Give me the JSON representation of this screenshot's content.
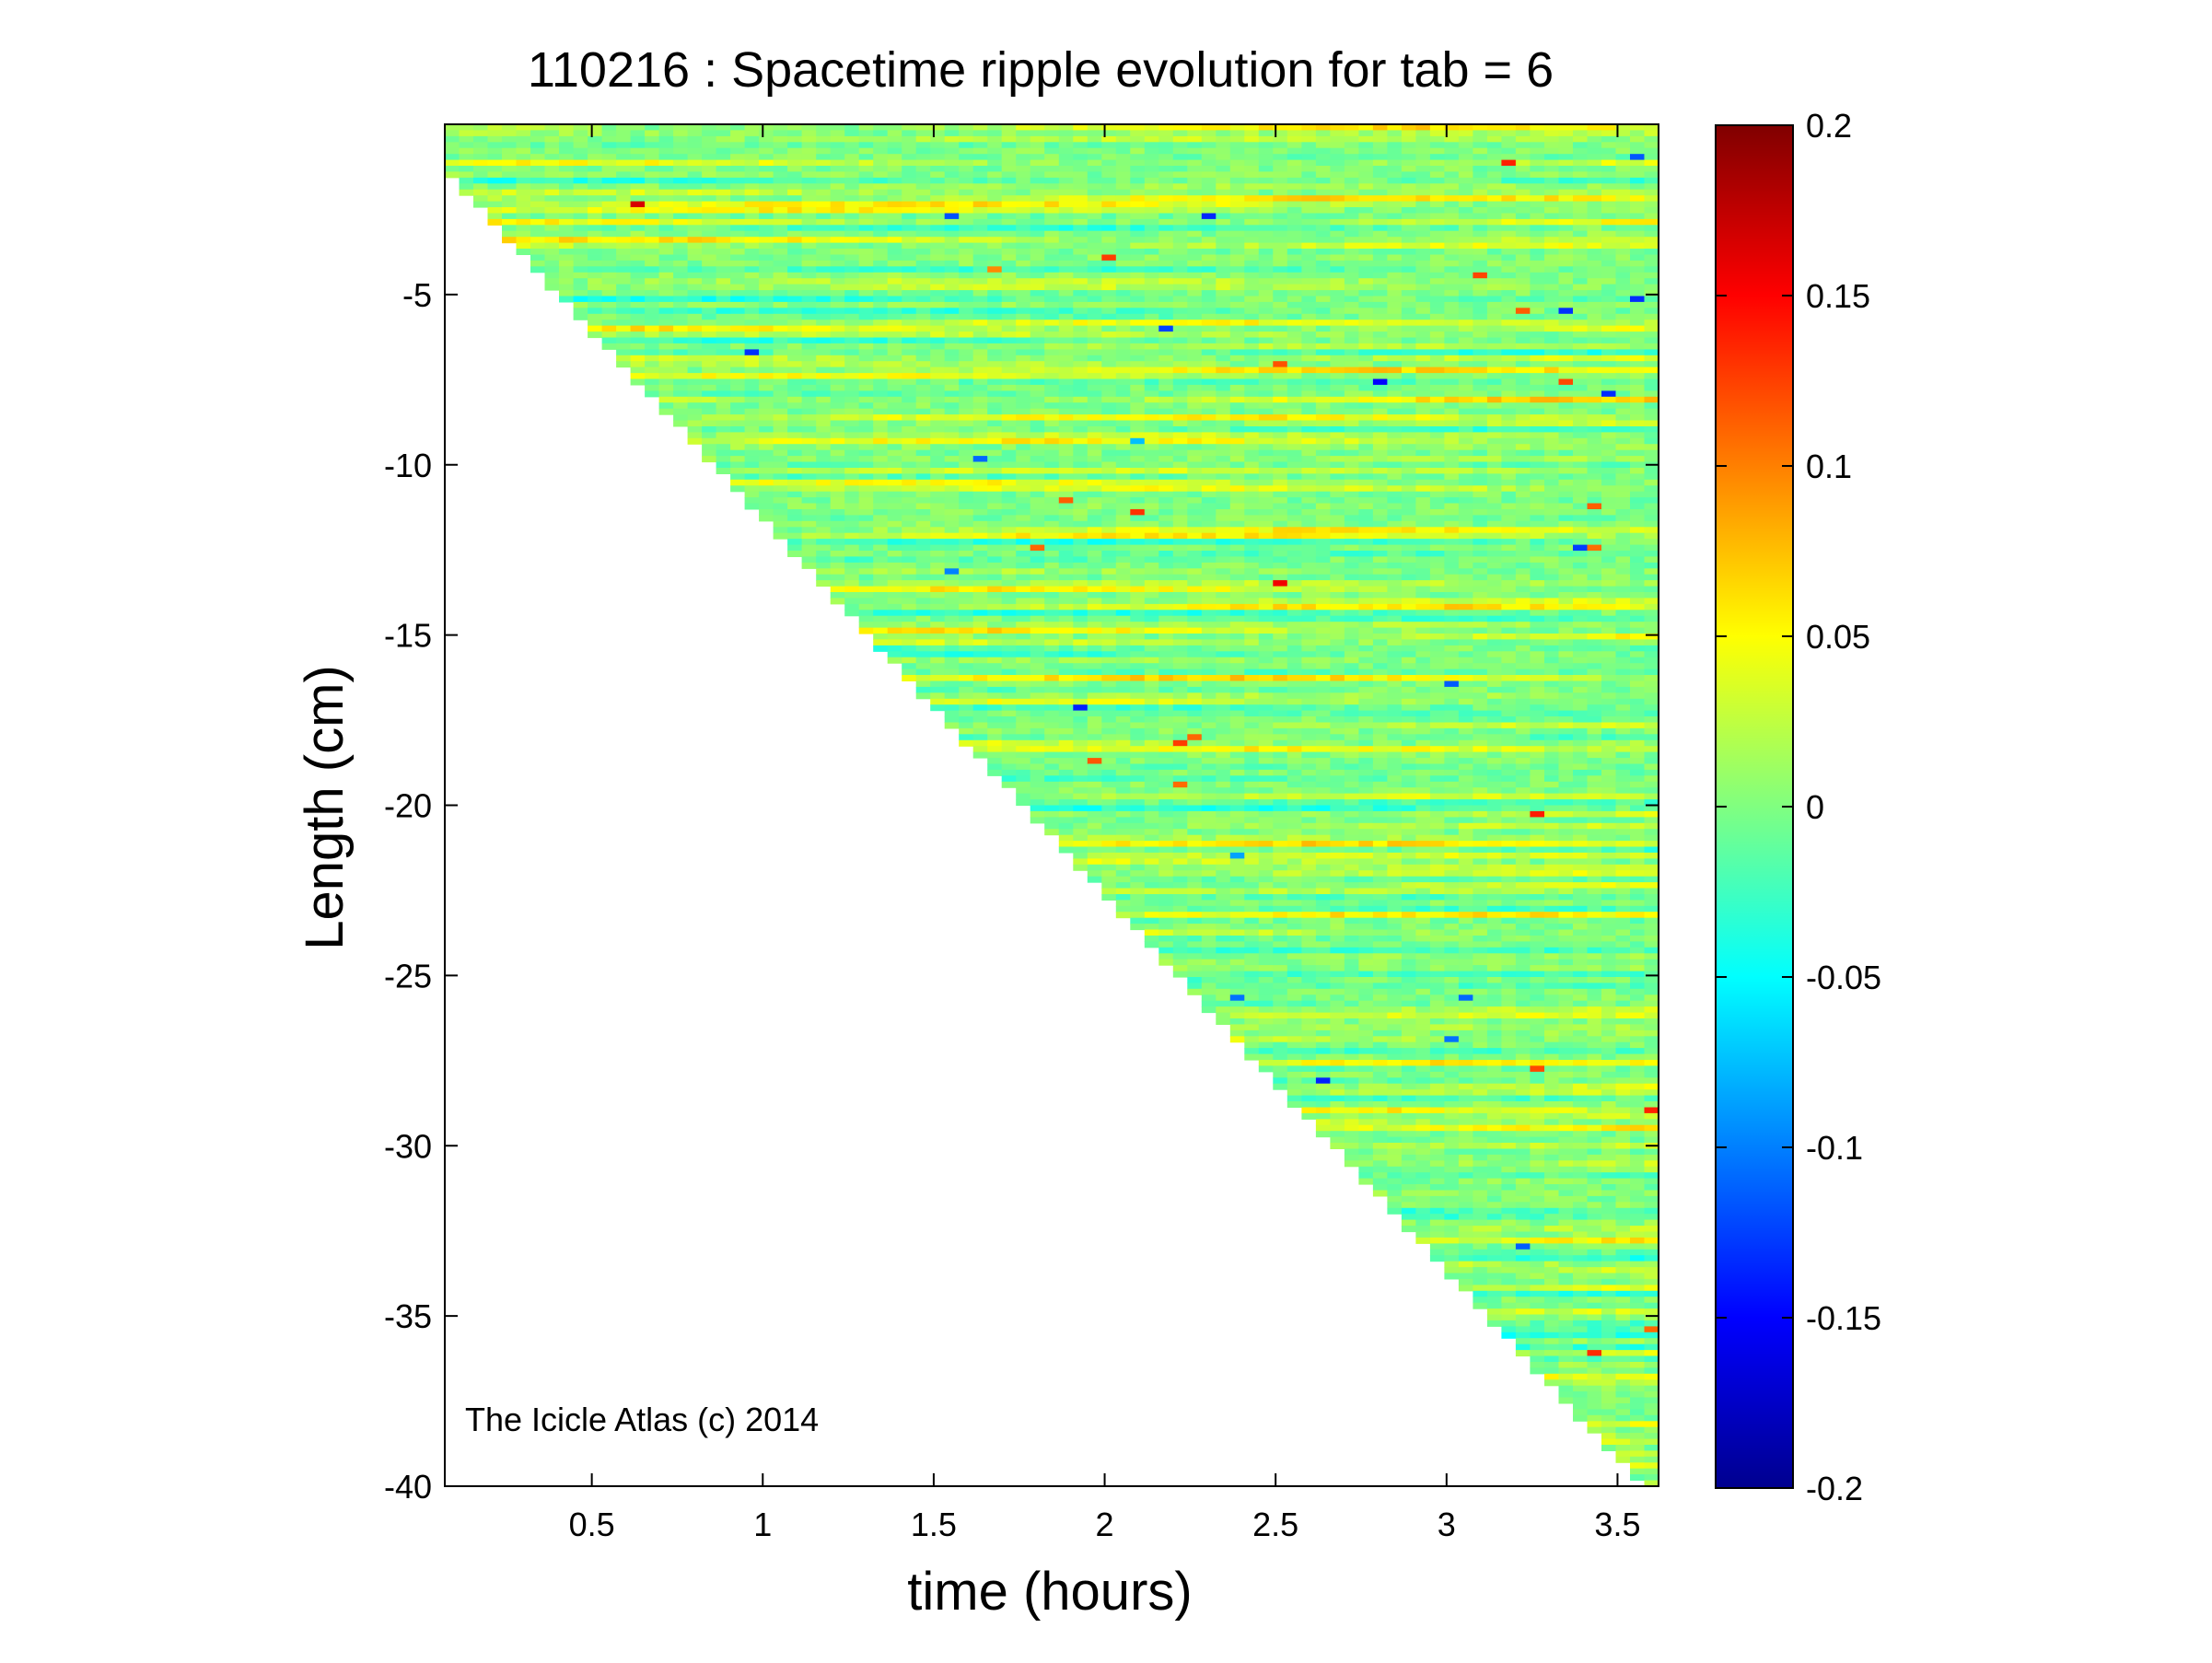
{
  "chart_data": {
    "type": "heatmap",
    "title": "110216 : Spacetime ripple evolution for tab = 6",
    "xlabel": "time (hours)",
    "ylabel": "Length (cm)",
    "xlim": [
      0.07,
      3.62
    ],
    "ylim": [
      -40,
      0
    ],
    "xticks": [
      0.5,
      1,
      1.5,
      2,
      2.5,
      3,
      3.5
    ],
    "yticks": [
      -5,
      -10,
      -15,
      -20,
      -25,
      -30,
      -35,
      -40
    ],
    "colorbar": {
      "colormap": "jet",
      "clim": [
        -0.2,
        0.2
      ],
      "ticks": [
        0.2,
        0.15,
        0.1,
        0.05,
        0,
        -0.05,
        -0.1,
        -0.15,
        -0.2
      ]
    },
    "data_region": {
      "description_free": true,
      "start_x": 0.07,
      "end_x": 3.62,
      "bottom_y_at_end": -39.2
    },
    "annotation": "The Icicle Atlas (c) 2014",
    "colors": {
      "background": "#ffffff",
      "axis": "#000000",
      "colormap_stops": [
        "#00008f",
        "#0000ff",
        "#00ffff",
        "#80ff80",
        "#ffff00",
        "#ff0000",
        "#800000"
      ]
    }
  }
}
